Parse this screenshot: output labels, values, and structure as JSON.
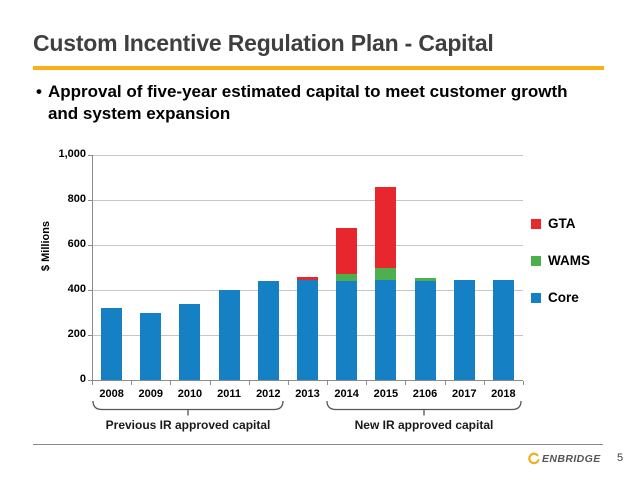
{
  "slide": {
    "title": "Custom Incentive Regulation Plan - Capital",
    "bullet": "Approval of five-year estimated capital to meet customer growth and system expansion",
    "accent_color": "#fbaf17",
    "logo_text": "ENBRIDGE",
    "page_number": "5"
  },
  "chart_data": {
    "type": "bar",
    "stacked": true,
    "title": "",
    "xlabel": "",
    "ylabel": "$ Millions",
    "ylim": [
      0,
      1000
    ],
    "ytick_step": 200,
    "ytick_labels": [
      "0",
      "200",
      "400",
      "600",
      "800",
      "1,000"
    ],
    "grid": true,
    "categories": [
      "2008",
      "2009",
      "2010",
      "2011",
      "2012",
      "2013",
      "2014",
      "2015",
      "2106",
      "2017",
      "2018"
    ],
    "series": [
      {
        "name": "Core",
        "color": "#1580c4",
        "values": [
          320,
          300,
          340,
          400,
          440,
          445,
          440,
          445,
          440,
          445,
          445
        ]
      },
      {
        "name": "WAMS",
        "color": "#4db04f",
        "values": [
          0,
          0,
          0,
          0,
          0,
          0,
          30,
          55,
          15,
          0,
          0
        ]
      },
      {
        "name": "GTA",
        "color": "#e8262d",
        "values": [
          0,
          0,
          0,
          0,
          0,
          12,
          205,
          360,
          0,
          0,
          0
        ]
      }
    ],
    "legend": {
      "position": "right",
      "order": [
        "GTA",
        "WAMS",
        "Core"
      ]
    }
  },
  "annotations": {
    "previous_bracket_label": "Previous IR approved capital",
    "new_bracket_label": "New IR approved capital"
  }
}
